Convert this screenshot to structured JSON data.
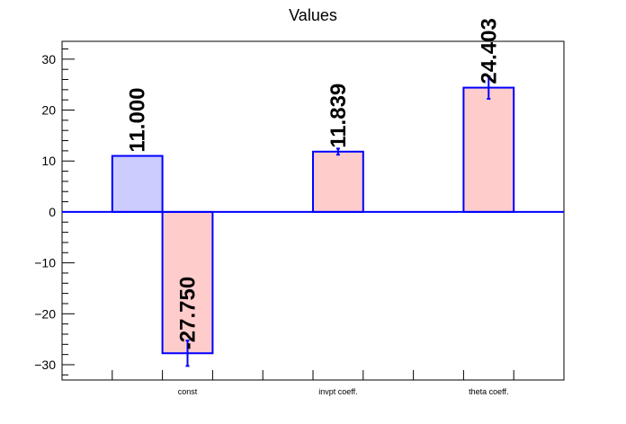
{
  "chart_data": {
    "type": "bar",
    "title": "Values",
    "categories": [
      "const",
      "invpt coeff.",
      "theta coeff."
    ],
    "ylim": [
      -33,
      33.5
    ],
    "yticks": [
      -30,
      -20,
      -10,
      0,
      10,
      20,
      30
    ],
    "bars": [
      {
        "category": "const",
        "value": 11.0,
        "label": "11.000",
        "color": "#ccccff",
        "error": 0
      },
      {
        "category": "const",
        "value": -27.75,
        "label": "-27.750",
        "color": "#ffcccc",
        "error": 2.5
      },
      {
        "category": "invpt coeff.",
        "value": 11.839,
        "label": "11.839",
        "color": "#ffcccc",
        "error": 0.6
      },
      {
        "category": "theta coeff.",
        "value": 24.403,
        "label": "24.403",
        "color": "#ffcccc",
        "error": 2.2
      }
    ],
    "bar_edge_color": "#0000ff",
    "grid": false
  }
}
